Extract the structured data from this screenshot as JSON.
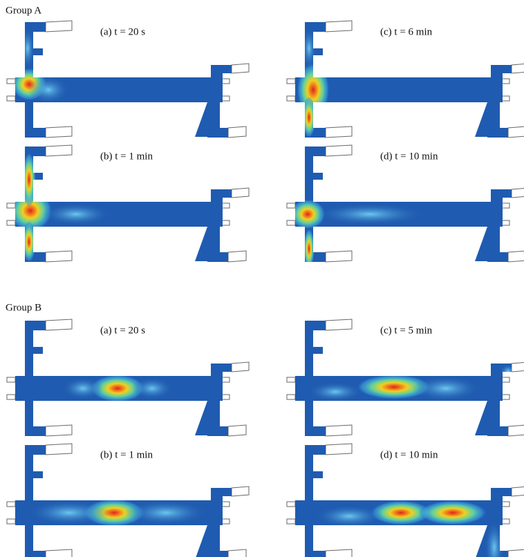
{
  "groups": [
    {
      "title": "Group A",
      "panels": [
        {
          "label": "(a) t = 20 s"
        },
        {
          "label": "(c) t = 6 min"
        },
        {
          "label": "(b) t = 1 min"
        },
        {
          "label": "(d) t = 10 min"
        }
      ]
    },
    {
      "title": "Group B",
      "panels": [
        {
          "label": "(a) t = 20 s"
        },
        {
          "label": "(c) t = 5 min"
        },
        {
          "label": "(b) t = 1 min"
        },
        {
          "label": "(d) t = 10 min"
        }
      ]
    }
  ]
}
